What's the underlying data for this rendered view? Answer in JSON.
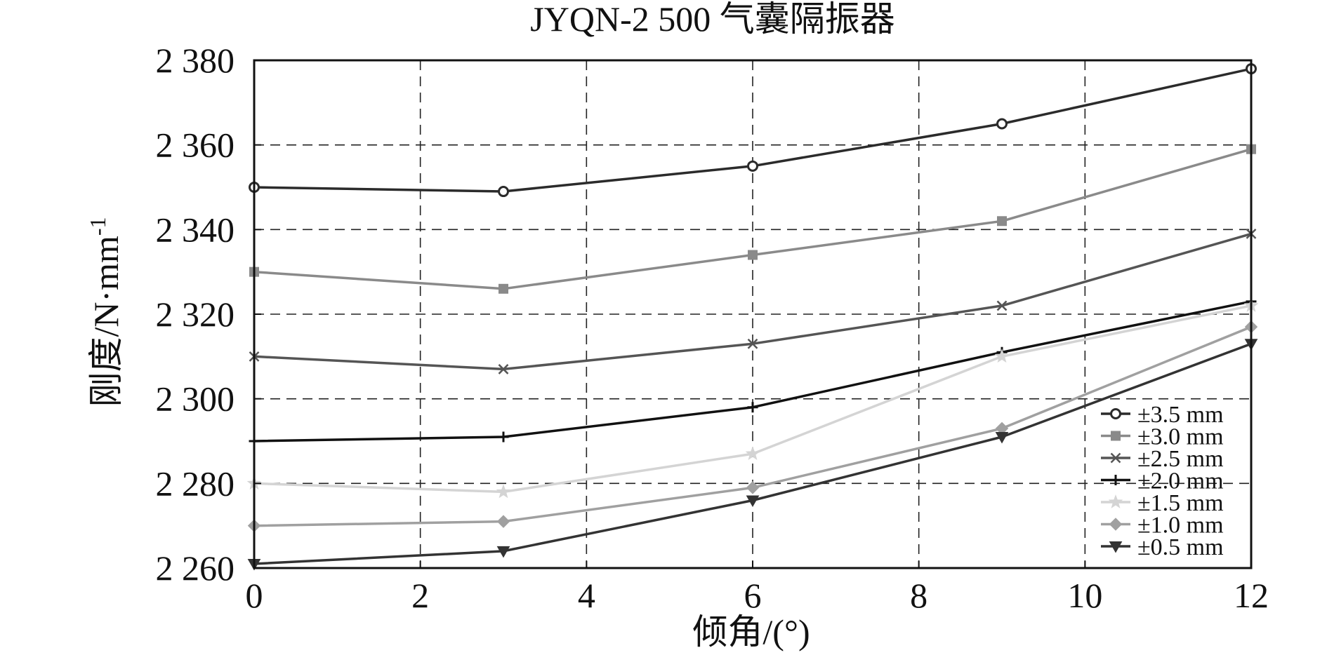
{
  "chart_data": {
    "type": "line",
    "title": "JYQN-2 500 气囊隔振器",
    "xlabel": "倾角/(°)",
    "ylabel": "刚度/N·mm",
    "ylabel_sup": "-1",
    "xlim": [
      0,
      12
    ],
    "ylim": [
      2260,
      2380
    ],
    "xticks": [
      0,
      2,
      4,
      6,
      8,
      10,
      12
    ],
    "xtick_labels": [
      "0",
      "2",
      "4",
      "6",
      "8",
      "10",
      "12"
    ],
    "yticks": [
      2260,
      2280,
      2300,
      2320,
      2340,
      2360,
      2380
    ],
    "ytick_labels": [
      "2 260",
      "2 280",
      "2 300",
      "2 320",
      "2 340",
      "2 360",
      "2 380"
    ],
    "grid": true,
    "legend_position": "bottom-right",
    "x": [
      0,
      3,
      6,
      9,
      12
    ],
    "series": [
      {
        "name": "±3.5 mm",
        "marker": "circle",
        "color": "#2b2b2b",
        "values": [
          2350,
          2349,
          2355,
          2365,
          2378
        ]
      },
      {
        "name": "±3.0 mm",
        "marker": "square",
        "color": "#8a8a8a",
        "values": [
          2330,
          2326,
          2334,
          2342,
          2359
        ]
      },
      {
        "name": "±2.5 mm",
        "marker": "x",
        "color": "#555555",
        "values": [
          2310,
          2307,
          2313,
          2322,
          2339
        ]
      },
      {
        "name": "±2.0 mm",
        "marker": "plus",
        "color": "#111111",
        "values": [
          2290,
          2291,
          2298,
          2311,
          2323
        ]
      },
      {
        "name": "±1.5 mm",
        "marker": "star",
        "color": "#d4d4d4",
        "values": [
          2280,
          2278,
          2287,
          2310,
          2322
        ]
      },
      {
        "name": "±1.0 mm",
        "marker": "diamond",
        "color": "#a0a0a0",
        "values": [
          2270,
          2271,
          2279,
          2293,
          2317
        ]
      },
      {
        "name": "±0.5 mm",
        "marker": "triangle-down",
        "color": "#333333",
        "values": [
          2261,
          2264,
          2276,
          2291,
          2313
        ]
      }
    ]
  }
}
